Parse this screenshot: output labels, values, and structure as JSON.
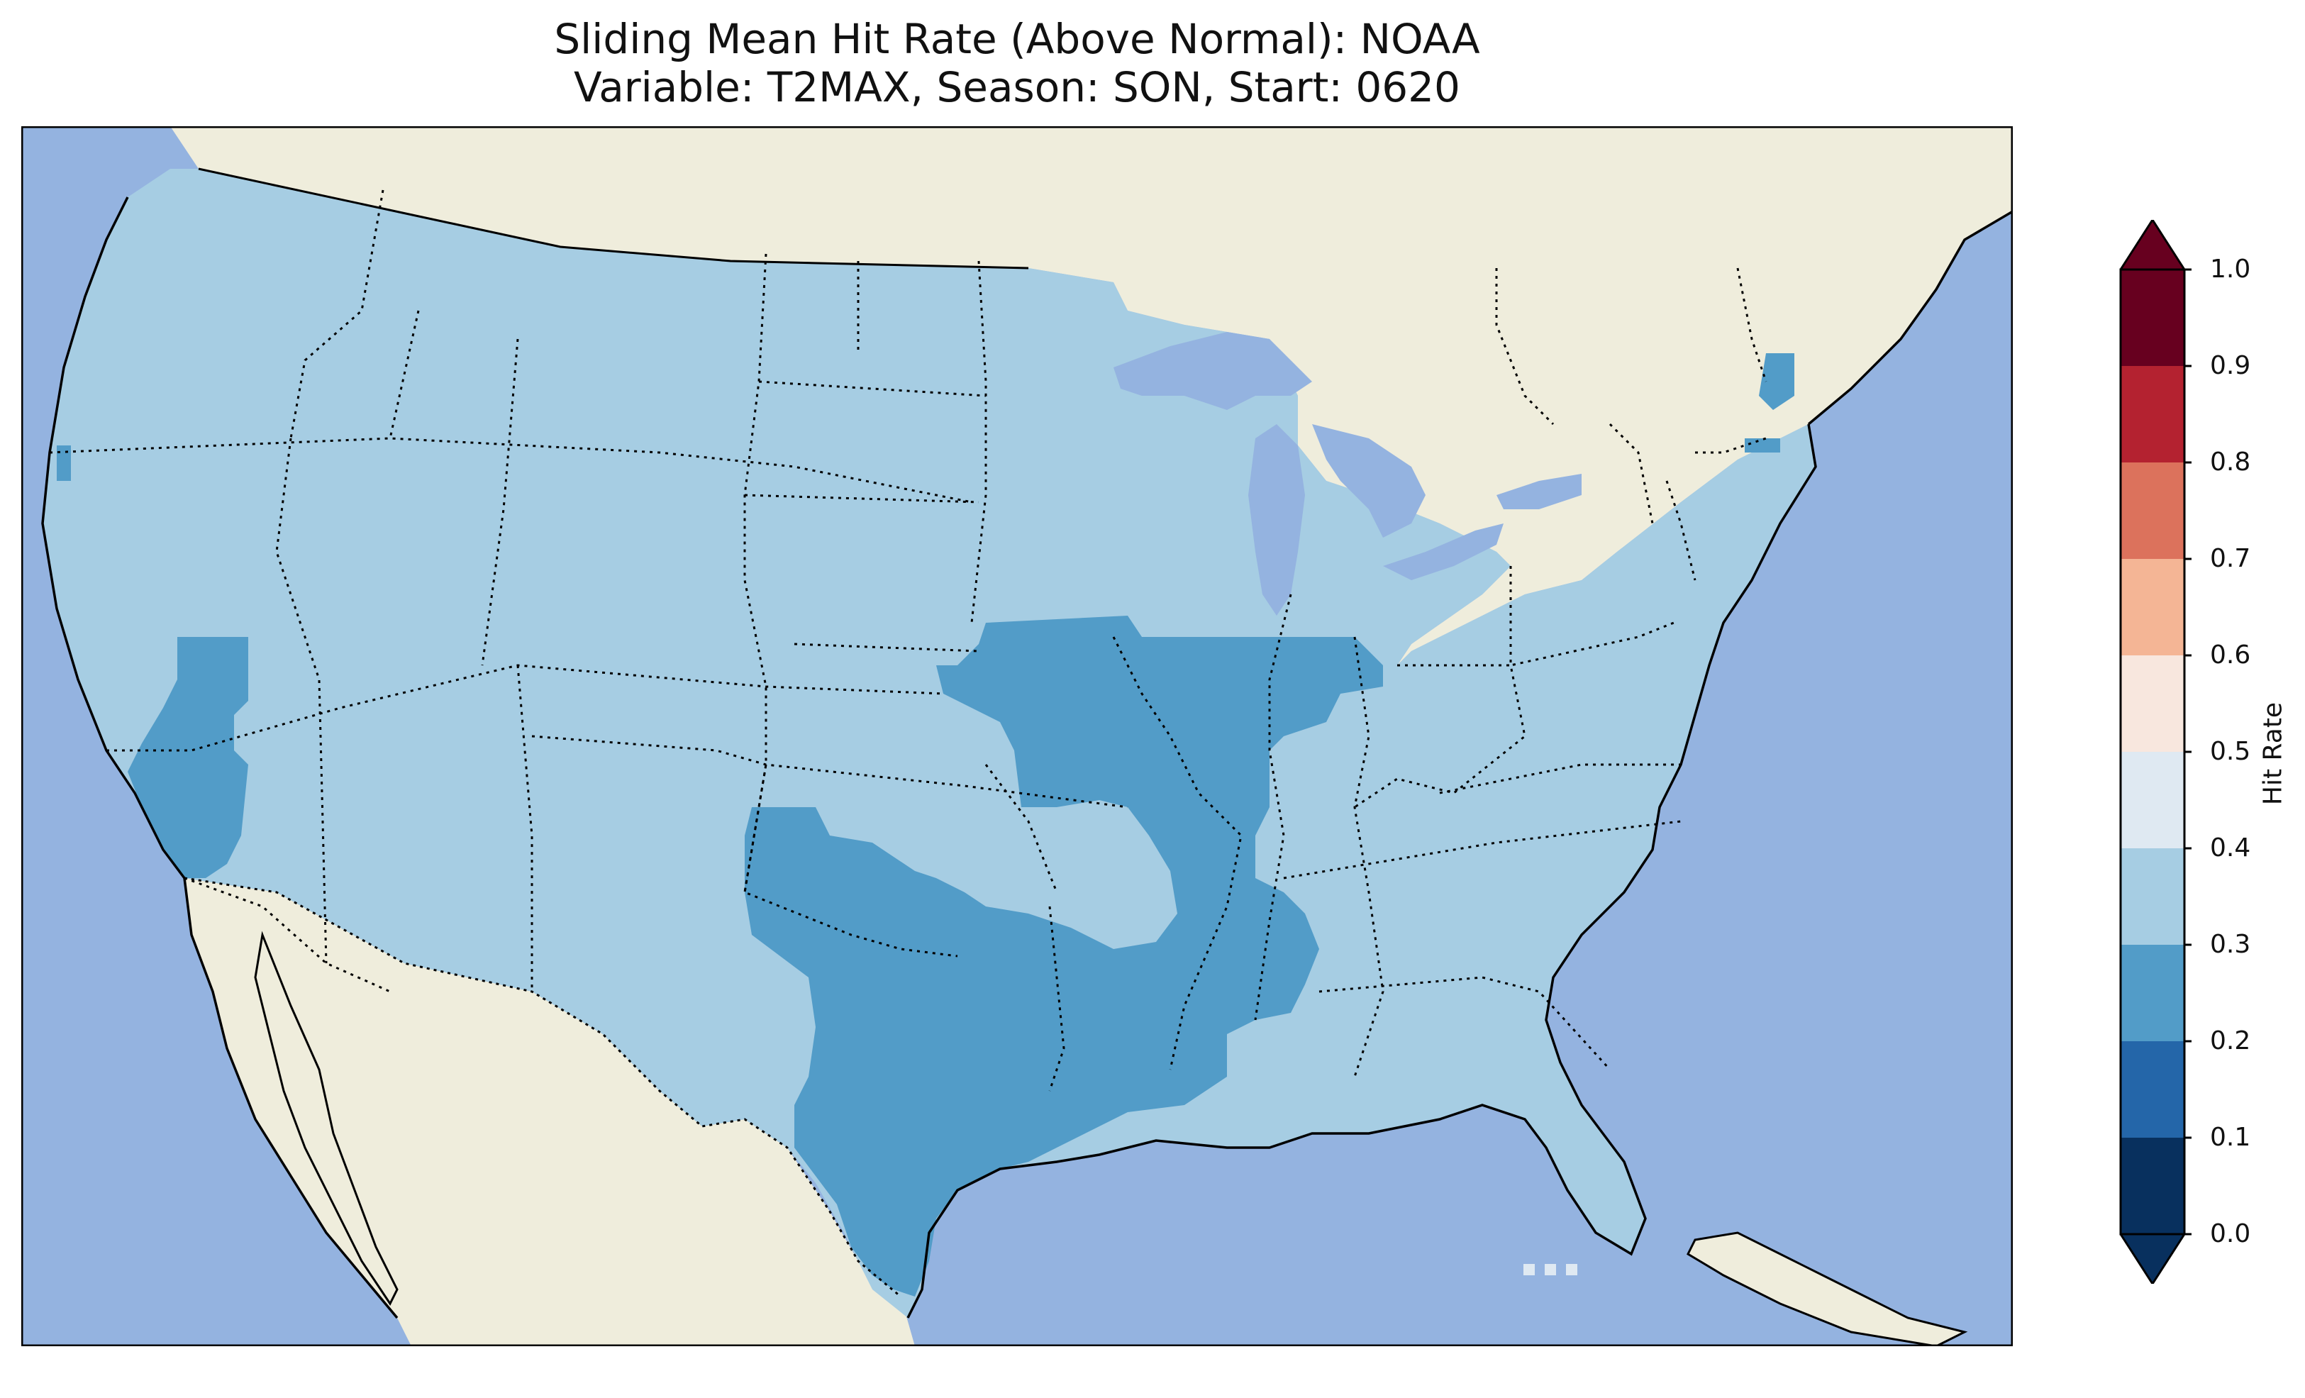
{
  "title_line1": "Sliding Mean Hit Rate (Above Normal): NOAA",
  "title_line2": "Variable: T2MAX, Season: SON, Start: 0620",
  "colors": {
    "ocean": "#94b3e0",
    "land_foreign": "#efeddc",
    "bin_0.2_0.3": "#529cc8",
    "bin_0.3_0.4": "#a6cde3",
    "bin_0.4_0.5": "#dfe9f2"
  },
  "colorbar": {
    "label": "Hit Rate",
    "ticks": [
      "0.0",
      "0.1",
      "0.2",
      "0.3",
      "0.4",
      "0.5",
      "0.6",
      "0.7",
      "0.8",
      "0.9",
      "1.0"
    ],
    "bins": [
      {
        "range": [
          0.0,
          0.1
        ],
        "color": "#08305e"
      },
      {
        "range": [
          0.1,
          0.2
        ],
        "color": "#2466a9"
      },
      {
        "range": [
          0.2,
          0.3
        ],
        "color": "#529cc8"
      },
      {
        "range": [
          0.3,
          0.4
        ],
        "color": "#a6cde3"
      },
      {
        "range": [
          0.4,
          0.5
        ],
        "color": "#dfe9f2"
      },
      {
        "range": [
          0.5,
          0.6
        ],
        "color": "#f8e7de"
      },
      {
        "range": [
          0.6,
          0.7
        ],
        "color": "#f4b595"
      },
      {
        "range": [
          0.7,
          0.8
        ],
        "color": "#dc725c"
      },
      {
        "range": [
          0.8,
          0.9
        ],
        "color": "#b42230"
      },
      {
        "range": [
          0.9,
          1.0
        ],
        "color": "#67001f"
      }
    ],
    "under_color": "#08305e",
    "over_color": "#67001f",
    "extend": "both"
  },
  "map": {
    "projection": "PlateCarree",
    "region": "Contiguous United States",
    "dominant_bin": "0.3-0.4",
    "lower_bin_regions": [
      "California coast",
      "Oregon coast",
      "south-central Plains (TX/OK/KS/MO/AR/LA/MS)",
      "New England coast"
    ],
    "higher_bin_regions": [
      "Florida Straits"
    ]
  }
}
